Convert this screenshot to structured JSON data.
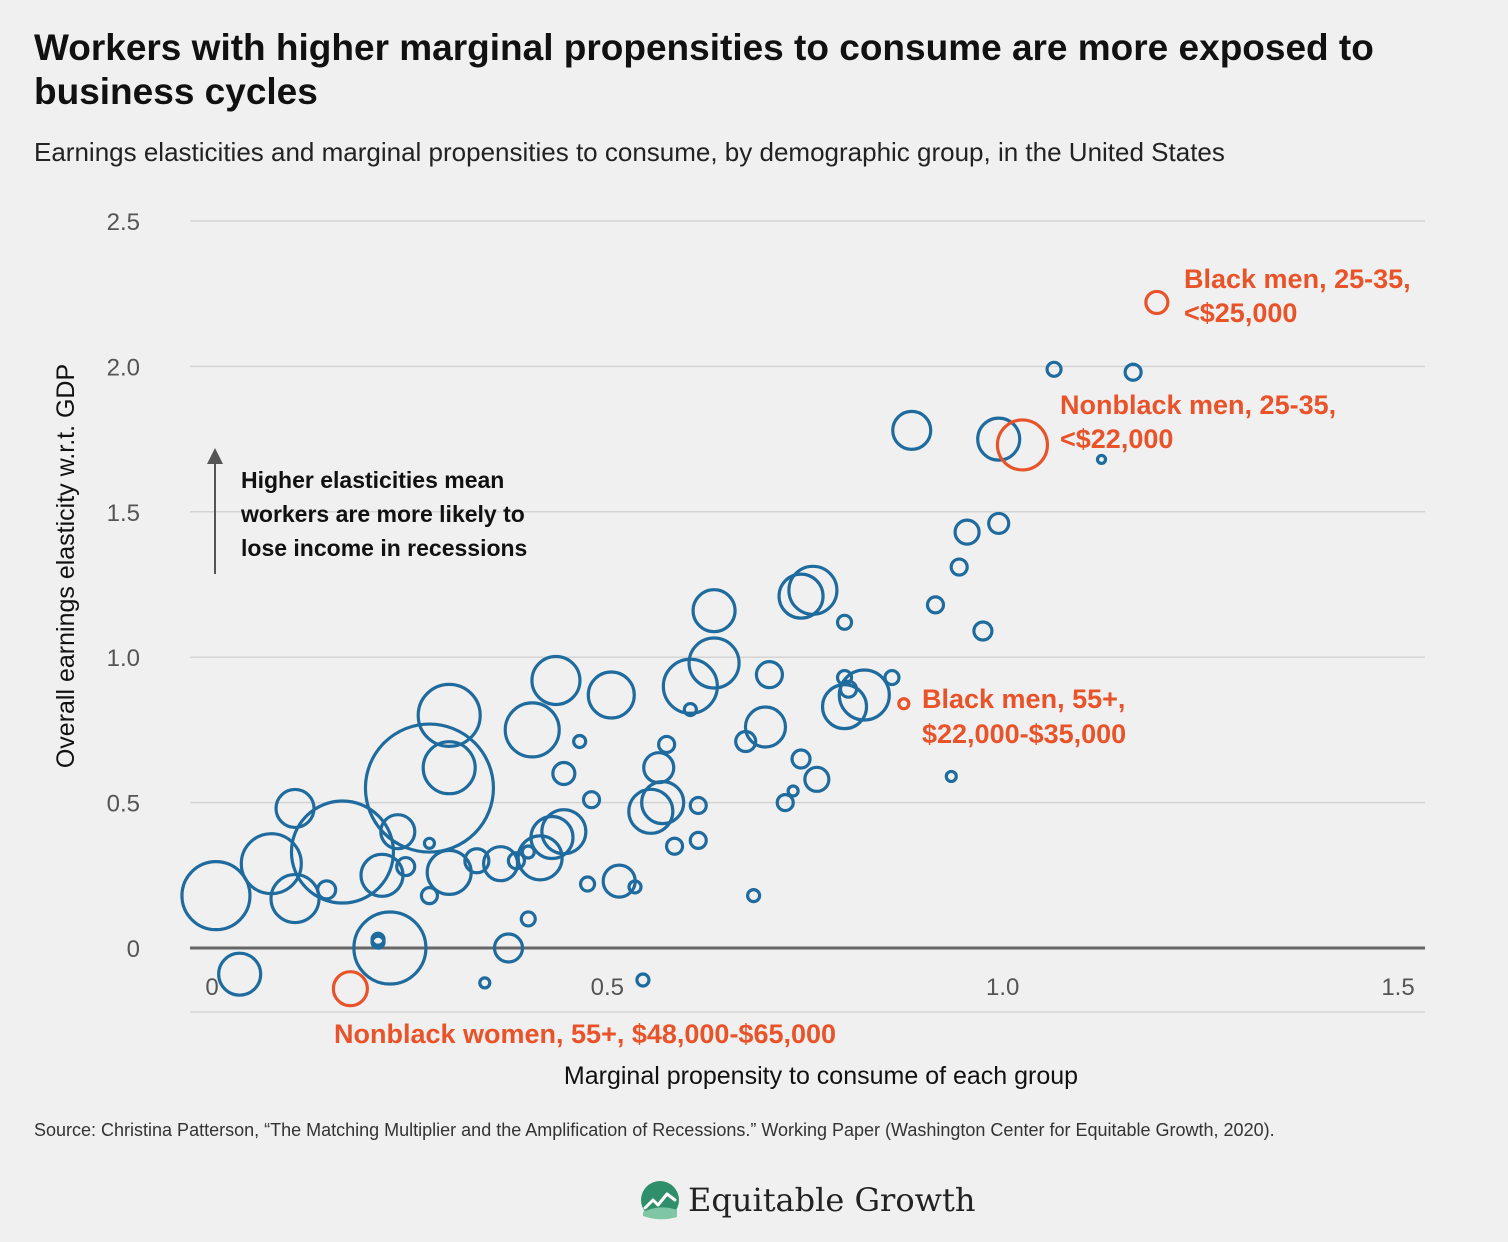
{
  "title": "Workers with higher marginal propensities to consume are more exposed to business cycles",
  "subtitle": "Earnings elasticities and marginal propensities to consume, by demographic group, in the United States",
  "source": "Source: Christina Patterson, “The Matching Multiplier and the Amplification of Recessions.” Working Paper (Washington Center for Equitable Growth, 2020).",
  "brand": {
    "name": "Equitable Growth",
    "logo_icon": "equitable-growth-logo-icon"
  },
  "colors": {
    "series": "#1f6b9e",
    "highlight": "#e8532a",
    "grid": "#d4d4d4",
    "baseline": "#666666"
  },
  "annotation": {
    "lines": [
      "Higher elasticities mean",
      "workers are more likely to",
      "lose income in recessions"
    ],
    "icon": "up-arrow-icon"
  },
  "chart_data": {
    "type": "scatter",
    "title": "Workers with higher marginal propensities to consume are more exposed to business cycles",
    "subtitle": "Earnings elasticities and marginal propensities to consume, by demographic group, in the United States",
    "xlabel": "Marginal propensity to consume of each group",
    "ylabel": "Overall earnings elasticity w.r.t. GDP",
    "xlim": [
      -0.05,
      1.52
    ],
    "ylim": [
      -0.22,
      2.5
    ],
    "x_ticks": [
      0,
      0.5,
      1.0,
      1.5
    ],
    "x_tick_labels": [
      "0",
      "0.5",
      "1.0",
      "1.5"
    ],
    "y_ticks": [
      0,
      0.5,
      1.0,
      1.5,
      2.0,
      2.5
    ],
    "y_tick_labels": [
      "0",
      "0.5",
      "1.0",
      "1.5",
      "2.0",
      "2.5"
    ],
    "grid": true,
    "bubble_size": "population of demographic group (relative)",
    "points": [
      {
        "x": 0.005,
        "y": 0.18,
        "s": 34
      },
      {
        "x": 0.035,
        "y": -0.09,
        "s": 21
      },
      {
        "x": 0.075,
        "y": 0.29,
        "s": 30
      },
      {
        "x": 0.105,
        "y": 0.48,
        "s": 19
      },
      {
        "x": 0.105,
        "y": 0.17,
        "s": 24
      },
      {
        "x": 0.145,
        "y": 0.2,
        "s": 9
      },
      {
        "x": 0.165,
        "y": 0.33,
        "s": 51
      },
      {
        "x": 0.21,
        "y": 0.03,
        "s": 6
      },
      {
        "x": 0.21,
        "y": 0.02,
        "s": 6
      },
      {
        "x": 0.215,
        "y": 0.25,
        "s": 21
      },
      {
        "x": 0.225,
        "y": 0.0,
        "s": 36
      },
      {
        "x": 0.235,
        "y": 0.4,
        "s": 17
      },
      {
        "x": 0.245,
        "y": 0.28,
        "s": 9
      },
      {
        "x": 0.275,
        "y": 0.55,
        "s": 64
      },
      {
        "x": 0.275,
        "y": 0.36,
        "s": 5
      },
      {
        "x": 0.275,
        "y": 0.18,
        "s": 8
      },
      {
        "x": 0.3,
        "y": 0.8,
        "s": 31
      },
      {
        "x": 0.3,
        "y": 0.62,
        "s": 26
      },
      {
        "x": 0.3,
        "y": 0.26,
        "s": 22
      },
      {
        "x": 0.335,
        "y": 0.3,
        "s": 12
      },
      {
        "x": 0.345,
        "y": -0.12,
        "s": 5
      },
      {
        "x": 0.365,
        "y": 0.29,
        "s": 17
      },
      {
        "x": 0.375,
        "y": 0.0,
        "s": 14
      },
      {
        "x": 0.385,
        "y": 0.3,
        "s": 8
      },
      {
        "x": 0.4,
        "y": 0.33,
        "s": 6
      },
      {
        "x": 0.4,
        "y": 0.1,
        "s": 7
      },
      {
        "x": 0.405,
        "y": 0.75,
        "s": 27
      },
      {
        "x": 0.415,
        "y": 0.31,
        "s": 22
      },
      {
        "x": 0.435,
        "y": 0.92,
        "s": 24
      },
      {
        "x": 0.43,
        "y": 0.38,
        "s": 21
      },
      {
        "x": 0.445,
        "y": 0.4,
        "s": 22
      },
      {
        "x": 0.445,
        "y": 0.6,
        "s": 11
      },
      {
        "x": 0.465,
        "y": 0.71,
        "s": 6
      },
      {
        "x": 0.475,
        "y": 0.22,
        "s": 7
      },
      {
        "x": 0.48,
        "y": 0.51,
        "s": 8
      },
      {
        "x": 0.505,
        "y": 0.87,
        "s": 23
      },
      {
        "x": 0.515,
        "y": 0.23,
        "s": 16
      },
      {
        "x": 0.535,
        "y": 0.21,
        "s": 6
      },
      {
        "x": 0.545,
        "y": -0.11,
        "s": 6
      },
      {
        "x": 0.555,
        "y": 0.47,
        "s": 22
      },
      {
        "x": 0.565,
        "y": 0.62,
        "s": 15
      },
      {
        "x": 0.57,
        "y": 0.5,
        "s": 21
      },
      {
        "x": 0.575,
        "y": 0.7,
        "s": 8
      },
      {
        "x": 0.585,
        "y": 0.35,
        "s": 8
      },
      {
        "x": 0.605,
        "y": 0.9,
        "s": 27
      },
      {
        "x": 0.605,
        "y": 0.82,
        "s": 6
      },
      {
        "x": 0.615,
        "y": 0.49,
        "s": 8
      },
      {
        "x": 0.615,
        "y": 0.37,
        "s": 8
      },
      {
        "x": 0.635,
        "y": 1.16,
        "s": 21
      },
      {
        "x": 0.635,
        "y": 0.98,
        "s": 25
      },
      {
        "x": 0.675,
        "y": 0.71,
        "s": 10
      },
      {
        "x": 0.685,
        "y": 0.18,
        "s": 6
      },
      {
        "x": 0.7,
        "y": 0.76,
        "s": 20
      },
      {
        "x": 0.705,
        "y": 0.94,
        "s": 13
      },
      {
        "x": 0.725,
        "y": 0.5,
        "s": 8
      },
      {
        "x": 0.735,
        "y": 0.54,
        "s": 5
      },
      {
        "x": 0.745,
        "y": 0.65,
        "s": 9
      },
      {
        "x": 0.745,
        "y": 1.21,
        "s": 22
      },
      {
        "x": 0.76,
        "y": 1.23,
        "s": 24
      },
      {
        "x": 0.765,
        "y": 0.58,
        "s": 12
      },
      {
        "x": 0.8,
        "y": 1.12,
        "s": 7
      },
      {
        "x": 0.8,
        "y": 0.93,
        "s": 7
      },
      {
        "x": 0.8,
        "y": 0.83,
        "s": 22
      },
      {
        "x": 0.805,
        "y": 0.89,
        "s": 8
      },
      {
        "x": 0.825,
        "y": 0.87,
        "s": 25
      },
      {
        "x": 0.86,
        "y": 0.93,
        "s": 7
      },
      {
        "x": 0.885,
        "y": 1.78,
        "s": 19
      },
      {
        "x": 0.915,
        "y": 1.18,
        "s": 8
      },
      {
        "x": 0.935,
        "y": 0.59,
        "s": 5
      },
      {
        "x": 0.945,
        "y": 1.31,
        "s": 8
      },
      {
        "x": 0.955,
        "y": 1.43,
        "s": 12
      },
      {
        "x": 0.975,
        "y": 1.09,
        "s": 9
      },
      {
        "x": 0.995,
        "y": 1.75,
        "s": 21
      },
      {
        "x": 0.995,
        "y": 1.46,
        "s": 10
      },
      {
        "x": 1.065,
        "y": 1.99,
        "s": 7
      },
      {
        "x": 1.125,
        "y": 1.68,
        "s": 4
      },
      {
        "x": 1.165,
        "y": 1.98,
        "s": 8
      }
    ],
    "highlighted": [
      {
        "x": 1.195,
        "y": 2.22,
        "s": 11,
        "label_lines": [
          "Black men, 25-35,",
          "<$25,000"
        ]
      },
      {
        "x": 1.025,
        "y": 1.73,
        "s": 25,
        "label_lines": [
          "Nonblack men, 25-35,",
          "<$22,000"
        ]
      },
      {
        "x": 0.875,
        "y": 0.84,
        "s": 5,
        "label_lines": [
          "Black men, 55+,",
          "$22,000-$35,000"
        ]
      },
      {
        "x": 0.175,
        "y": -0.14,
        "s": 17,
        "label_lines": [
          "Nonblack women, 55+, $48,000-$65,000"
        ]
      }
    ]
  }
}
